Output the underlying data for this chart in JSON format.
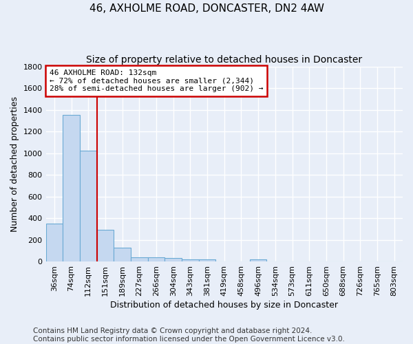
{
  "title1": "46, AXHOLME ROAD, DONCASTER, DN2 4AW",
  "title2": "Size of property relative to detached houses in Doncaster",
  "xlabel": "Distribution of detached houses by size in Doncaster",
  "ylabel": "Number of detached properties",
  "footnote": "Contains HM Land Registry data © Crown copyright and database right 2024.\nContains public sector information licensed under the Open Government Licence v3.0.",
  "bin_labels": [
    "36sqm",
    "74sqm",
    "112sqm",
    "151sqm",
    "189sqm",
    "227sqm",
    "266sqm",
    "304sqm",
    "343sqm",
    "381sqm",
    "419sqm",
    "458sqm",
    "496sqm",
    "534sqm",
    "573sqm",
    "611sqm",
    "650sqm",
    "688sqm",
    "726sqm",
    "765sqm",
    "803sqm"
  ],
  "bar_heights": [
    350,
    1355,
    1025,
    295,
    130,
    40,
    38,
    30,
    20,
    18,
    0,
    0,
    20,
    0,
    0,
    0,
    0,
    0,
    0,
    0,
    0
  ],
  "bar_color": "#c5d8f0",
  "bar_edge_color": "#6aaad4",
  "vline_x": 2.5,
  "annotation_text": "46 AXHOLME ROAD: 132sqm\n← 72% of detached houses are smaller (2,344)\n28% of semi-detached houses are larger (902) →",
  "annotation_box_color": "white",
  "annotation_box_edge_color": "#cc0000",
  "vline_color": "#cc0000",
  "ylim": [
    0,
    1800
  ],
  "yticks": [
    0,
    200,
    400,
    600,
    800,
    1000,
    1200,
    1400,
    1600,
    1800
  ],
  "background_color": "#e8eef8",
  "grid_color": "white",
  "title1_fontsize": 11,
  "title2_fontsize": 10,
  "xlabel_fontsize": 9,
  "ylabel_fontsize": 9,
  "tick_fontsize": 8,
  "annotation_fontsize": 8,
  "footnote_fontsize": 7.5
}
